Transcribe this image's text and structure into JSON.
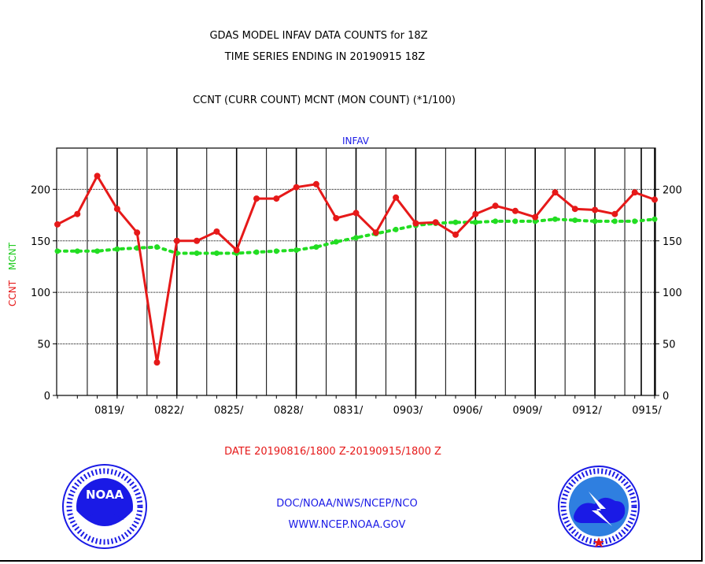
{
  "header": {
    "title1": "GDAS MODEL INFAV DATA COUNTS for 18Z",
    "title2": "TIME SERIES ENDING IN 20190915 18Z",
    "subtitle": "CCNT (CURR COUNT) MCNT (MON COUNT) (*1/100)"
  },
  "footer": {
    "date_range": "DATE 20190816/1800 Z-20190915/1800 Z",
    "org": "DOC/NOAA/NWS/NCEP/NCO",
    "url": "WWW.NCEP.NOAA.GOV"
  },
  "logos": {
    "left": "noaa-logo",
    "right": "national-weather-service-logo"
  },
  "colors": {
    "ccnt": "#e61919",
    "mcnt": "#22dd22",
    "label_blue": "#1a1ae6"
  },
  "chart_data": {
    "type": "line",
    "title": "INFAV",
    "ylabel_series": [
      "CCNT",
      "MCNT"
    ],
    "ylim": [
      0,
      240
    ],
    "yticks": [
      0,
      50,
      100,
      150,
      200
    ],
    "ytick_labels": [
      "0",
      "50",
      "100",
      "150",
      "200"
    ],
    "x": [
      "0816",
      "0817",
      "0818",
      "0819",
      "0820",
      "0821",
      "0822",
      "0823",
      "0824",
      "0825",
      "0826",
      "0827",
      "0828",
      "0829",
      "0830",
      "0831",
      "0901",
      "0902",
      "0903",
      "0904",
      "0905",
      "0906",
      "0907",
      "0908",
      "0909",
      "0910",
      "0911",
      "0912",
      "0913",
      "0914",
      "0915"
    ],
    "xtick_labels": [
      "0819/",
      "0822/",
      "0825/",
      "0828/",
      "0831/",
      "0903/",
      "0906/",
      "0909/",
      "0912/",
      "0915/"
    ],
    "grid": true,
    "series": [
      {
        "name": "CCNT",
        "values": [
          166,
          176,
          213,
          181,
          158,
          32,
          150,
          150,
          159,
          141,
          191,
          191,
          202,
          205,
          172,
          177,
          158,
          192,
          167,
          168,
          156,
          176,
          184,
          179,
          173,
          197,
          181,
          180,
          176,
          197,
          190
        ]
      },
      {
        "name": "MCNT",
        "values": [
          140,
          140,
          140,
          142,
          143,
          144,
          138,
          138,
          138,
          138,
          139,
          140,
          141,
          144,
          149,
          153,
          157,
          161,
          165,
          167,
          168,
          168,
          169,
          169,
          169,
          171,
          170,
          169,
          169,
          169,
          171
        ]
      }
    ]
  }
}
